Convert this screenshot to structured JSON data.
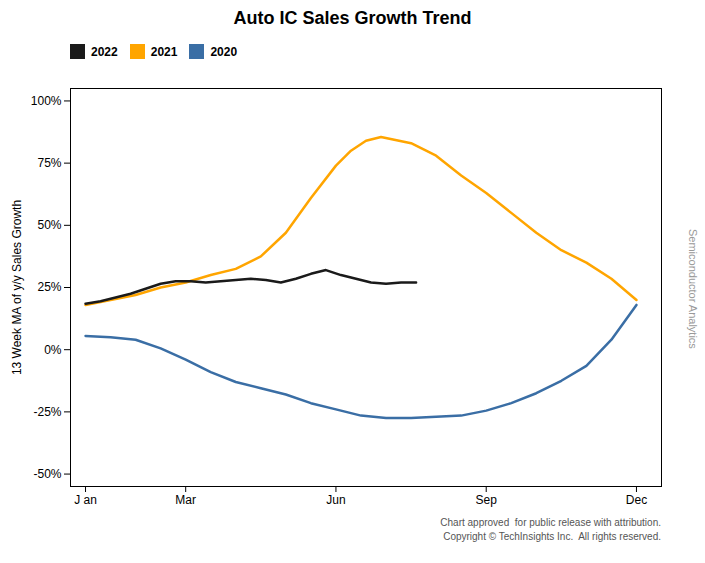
{
  "chart_data": {
    "type": "line",
    "title": "Auto IC Sales Growth Trend",
    "y_label": "13 Week MA of y/y Sales Growth",
    "annotations": [
      "Semiconductor Analytics",
      "Chart approved  for public release with attribution.",
      "Copyright © TechInsights Inc.  All rights reserved."
    ],
    "xlim": [
      -0.3,
      11.5
    ],
    "xticks": [
      {
        "value": 0,
        "label": "J an"
      },
      {
        "value": 2,
        "label": "Mar"
      },
      {
        "value": 5,
        "label": "Jun"
      },
      {
        "value": 8,
        "label": "Sep"
      },
      {
        "value": 11,
        "label": "Dec"
      }
    ],
    "ylim": [
      -0.55,
      1.05
    ],
    "yticks": [
      {
        "value": -0.5,
        "label": "-50%"
      },
      {
        "value": -0.25,
        "label": "-25%"
      },
      {
        "value": 0.0,
        "label": "0%"
      },
      {
        "value": 0.25,
        "label": "25%"
      },
      {
        "value": 0.5,
        "label": "50%"
      },
      {
        "value": 0.75,
        "label": "75%"
      },
      {
        "value": 1.0,
        "label": "100%"
      }
    ],
    "grid": false,
    "legend": "upper left",
    "series": [
      {
        "name": "2022",
        "color": "#1a1a1a",
        "x": [
          0,
          0.3,
          0.6,
          0.9,
          1.2,
          1.5,
          1.8,
          2.1,
          2.4,
          2.7,
          3.0,
          3.3,
          3.6,
          3.9,
          4.2,
          4.5,
          4.8,
          5.1,
          5.4,
          5.7,
          6.0,
          6.3,
          6.6
        ],
        "values": [
          0.185,
          0.195,
          0.21,
          0.225,
          0.245,
          0.265,
          0.275,
          0.275,
          0.27,
          0.275,
          0.28,
          0.285,
          0.28,
          0.27,
          0.285,
          0.305,
          0.32,
          0.3,
          0.285,
          0.27,
          0.265,
          0.27,
          0.27
        ]
      },
      {
        "name": "2021",
        "color": "#FFA500",
        "x": [
          0,
          0.5,
          1.0,
          1.5,
          2.0,
          2.5,
          3.0,
          3.5,
          4.0,
          4.5,
          5.0,
          5.3,
          5.6,
          5.9,
          6.5,
          7.0,
          7.5,
          8.0,
          8.5,
          9.0,
          9.5,
          10.0,
          10.5,
          11.0
        ],
        "values": [
          0.18,
          0.2,
          0.22,
          0.25,
          0.27,
          0.3,
          0.325,
          0.375,
          0.47,
          0.61,
          0.74,
          0.8,
          0.84,
          0.855,
          0.83,
          0.78,
          0.7,
          0.63,
          0.55,
          0.47,
          0.4,
          0.35,
          0.285,
          0.2
        ]
      },
      {
        "name": "2020",
        "color": "#3a6ea5",
        "x": [
          0,
          0.5,
          1.0,
          1.5,
          2.0,
          2.5,
          3.0,
          3.5,
          4.0,
          4.5,
          5.0,
          5.5,
          6.0,
          6.5,
          7.0,
          7.5,
          8.0,
          8.5,
          9.0,
          9.5,
          10.0,
          10.5,
          11.0
        ],
        "values": [
          0.055,
          0.05,
          0.04,
          0.005,
          -0.04,
          -0.09,
          -0.13,
          -0.155,
          -0.18,
          -0.215,
          -0.24,
          -0.265,
          -0.275,
          -0.275,
          -0.27,
          -0.265,
          -0.245,
          -0.215,
          -0.175,
          -0.125,
          -0.065,
          0.04,
          0.18
        ]
      }
    ]
  }
}
